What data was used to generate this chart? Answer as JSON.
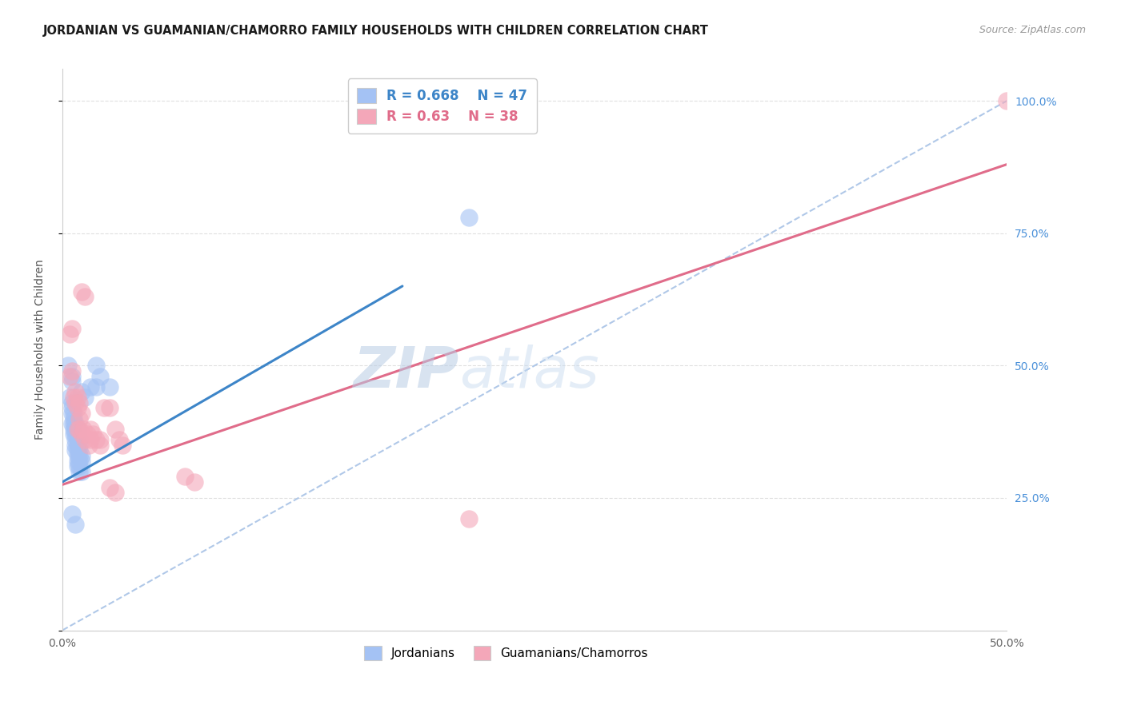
{
  "title": "JORDANIAN VS GUAMANIAN/CHAMORRO FAMILY HOUSEHOLDS WITH CHILDREN CORRELATION CHART",
  "source": "Source: ZipAtlas.com",
  "ylabel": "Family Households with Children",
  "xlabel": "",
  "xlim": [
    0,
    0.5
  ],
  "ylim": [
    0,
    1.06
  ],
  "ytick_labels": [
    "",
    "25.0%",
    "50.0%",
    "75.0%",
    "100.0%"
  ],
  "ytick_vals": [
    0,
    0.25,
    0.5,
    0.75,
    1.0
  ],
  "xtick_labels": [
    "0.0%",
    "",
    "",
    "",
    "",
    "",
    "",
    "",
    "",
    "",
    "50.0%"
  ],
  "xtick_vals": [
    0.0,
    0.05,
    0.1,
    0.15,
    0.2,
    0.25,
    0.3,
    0.35,
    0.4,
    0.45,
    0.5
  ],
  "legend_label_jordanians": "Jordanians",
  "legend_label_guamanians": "Guamanians/Chamorros",
  "watermark_zip": "ZIP",
  "watermark_atlas": "atlas",
  "jordanian_color": "#a4c2f4",
  "guamanian_color": "#f4a7b9",
  "trendline_jordan_color": "#3d85c8",
  "trendline_guam_color": "#e06c8a",
  "diagonal_color": "#b0c8e8",
  "background_color": "#ffffff",
  "grid_color": "#e0e0e0",
  "right_axis_color": "#4a90d9",
  "jordan_legend_color": "#3d85c8",
  "guam_legend_color": "#e06c8a",
  "R_jordan": 0.668,
  "N_jordan": 47,
  "R_guam": 0.63,
  "N_guam": 38,
  "jordan_trend_x0": 0.0,
  "jordan_trend_y0": 0.28,
  "jordan_trend_x1": 0.18,
  "jordan_trend_y1": 0.65,
  "guam_trend_x0": 0.0,
  "guam_trend_y0": 0.275,
  "guam_trend_x1": 0.5,
  "guam_trend_y1": 0.88,
  "jordanian_points": [
    [
      0.003,
      0.5
    ],
    [
      0.005,
      0.48
    ],
    [
      0.005,
      0.47
    ],
    [
      0.004,
      0.44
    ],
    [
      0.005,
      0.43
    ],
    [
      0.005,
      0.42
    ],
    [
      0.005,
      0.41
    ],
    [
      0.006,
      0.41
    ],
    [
      0.006,
      0.4
    ],
    [
      0.005,
      0.39
    ],
    [
      0.006,
      0.39
    ],
    [
      0.007,
      0.39
    ],
    [
      0.006,
      0.38
    ],
    [
      0.007,
      0.38
    ],
    [
      0.008,
      0.38
    ],
    [
      0.006,
      0.37
    ],
    [
      0.007,
      0.37
    ],
    [
      0.008,
      0.37
    ],
    [
      0.007,
      0.36
    ],
    [
      0.008,
      0.36
    ],
    [
      0.009,
      0.36
    ],
    [
      0.007,
      0.35
    ],
    [
      0.008,
      0.35
    ],
    [
      0.009,
      0.35
    ],
    [
      0.007,
      0.34
    ],
    [
      0.008,
      0.34
    ],
    [
      0.009,
      0.34
    ],
    [
      0.008,
      0.33
    ],
    [
      0.009,
      0.33
    ],
    [
      0.01,
      0.33
    ],
    [
      0.008,
      0.32
    ],
    [
      0.009,
      0.32
    ],
    [
      0.01,
      0.32
    ],
    [
      0.008,
      0.31
    ],
    [
      0.009,
      0.31
    ],
    [
      0.009,
      0.3
    ],
    [
      0.01,
      0.3
    ],
    [
      0.005,
      0.22
    ],
    [
      0.007,
      0.2
    ],
    [
      0.215,
      0.78
    ],
    [
      0.018,
      0.5
    ],
    [
      0.02,
      0.48
    ],
    [
      0.01,
      0.45
    ],
    [
      0.012,
      0.44
    ],
    [
      0.015,
      0.46
    ],
    [
      0.018,
      0.46
    ],
    [
      0.025,
      0.46
    ]
  ],
  "guamanian_points": [
    [
      0.004,
      0.56
    ],
    [
      0.005,
      0.57
    ],
    [
      0.004,
      0.48
    ],
    [
      0.005,
      0.49
    ],
    [
      0.006,
      0.44
    ],
    [
      0.007,
      0.45
    ],
    [
      0.007,
      0.43
    ],
    [
      0.008,
      0.44
    ],
    [
      0.008,
      0.42
    ],
    [
      0.009,
      0.43
    ],
    [
      0.009,
      0.4
    ],
    [
      0.01,
      0.41
    ],
    [
      0.008,
      0.38
    ],
    [
      0.009,
      0.38
    ],
    [
      0.01,
      0.37
    ],
    [
      0.011,
      0.38
    ],
    [
      0.012,
      0.36
    ],
    [
      0.013,
      0.37
    ],
    [
      0.014,
      0.35
    ],
    [
      0.015,
      0.36
    ],
    [
      0.015,
      0.38
    ],
    [
      0.016,
      0.37
    ],
    [
      0.018,
      0.36
    ],
    [
      0.02,
      0.36
    ],
    [
      0.02,
      0.35
    ],
    [
      0.022,
      0.42
    ],
    [
      0.025,
      0.42
    ],
    [
      0.028,
      0.38
    ],
    [
      0.03,
      0.36
    ],
    [
      0.032,
      0.35
    ],
    [
      0.065,
      0.29
    ],
    [
      0.07,
      0.28
    ],
    [
      0.01,
      0.64
    ],
    [
      0.012,
      0.63
    ],
    [
      0.025,
      0.27
    ],
    [
      0.028,
      0.26
    ],
    [
      0.215,
      0.21
    ],
    [
      0.5,
      1.0
    ]
  ]
}
